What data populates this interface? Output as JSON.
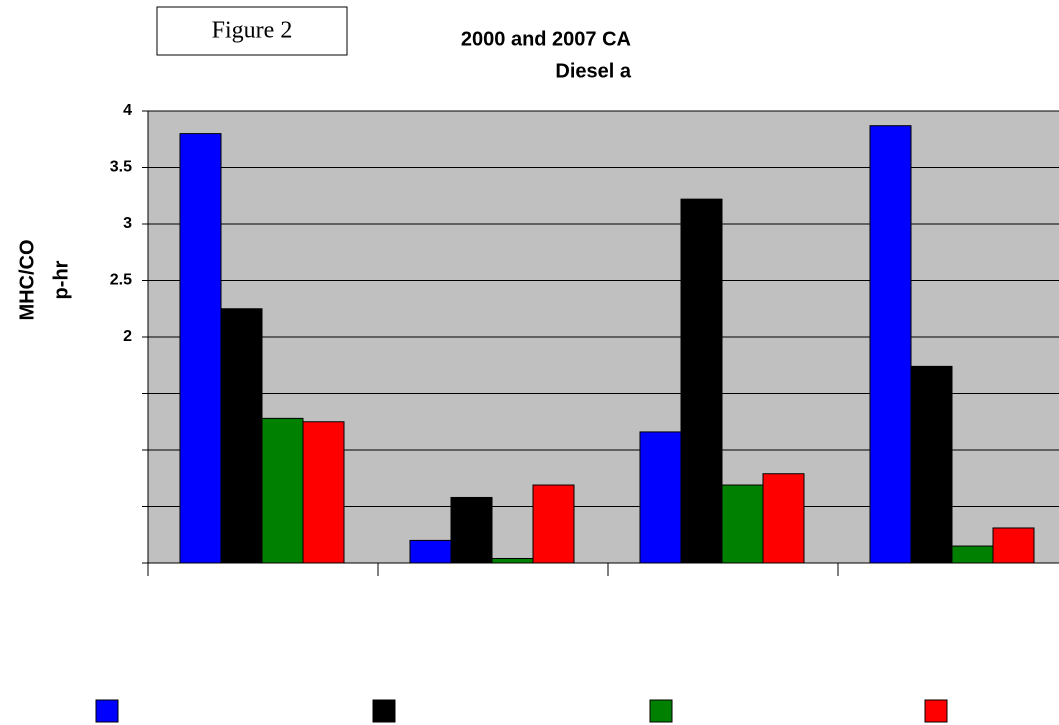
{
  "annotation": "Figure 2",
  "chart_data": {
    "type": "bar",
    "title_lines": [
      "2000 and 2007 CA",
      "Diesel a"
    ],
    "y_label_lines": [
      "MHC/CO",
      "p-hr"
    ],
    "categories": [
      null,
      null,
      null,
      null
    ],
    "series": [
      {
        "name": null,
        "color": "#0000ff",
        "values": [
          3.8,
          0.2,
          1.16,
          3.87
        ]
      },
      {
        "name": null,
        "color": "#000000",
        "values": [
          2.25,
          0.58,
          3.22,
          1.74
        ]
      },
      {
        "name": null,
        "color": "#008000",
        "values": [
          1.28,
          0.04,
          0.69,
          0.15
        ]
      },
      {
        "name": null,
        "color": "#ff0000",
        "values": [
          1.25,
          0.69,
          0.79,
          0.31
        ]
      }
    ],
    "ylim": [
      0,
      4
    ],
    "yticks": [
      {
        "value": 0,
        "label": null
      },
      {
        "value": 0.5,
        "label": null
      },
      {
        "value": 1,
        "label": null
      },
      {
        "value": 1.5,
        "label": null
      },
      2,
      2.5,
      3,
      3.5,
      4
    ],
    "grid": true,
    "plot_background": "#c0c0c0"
  }
}
